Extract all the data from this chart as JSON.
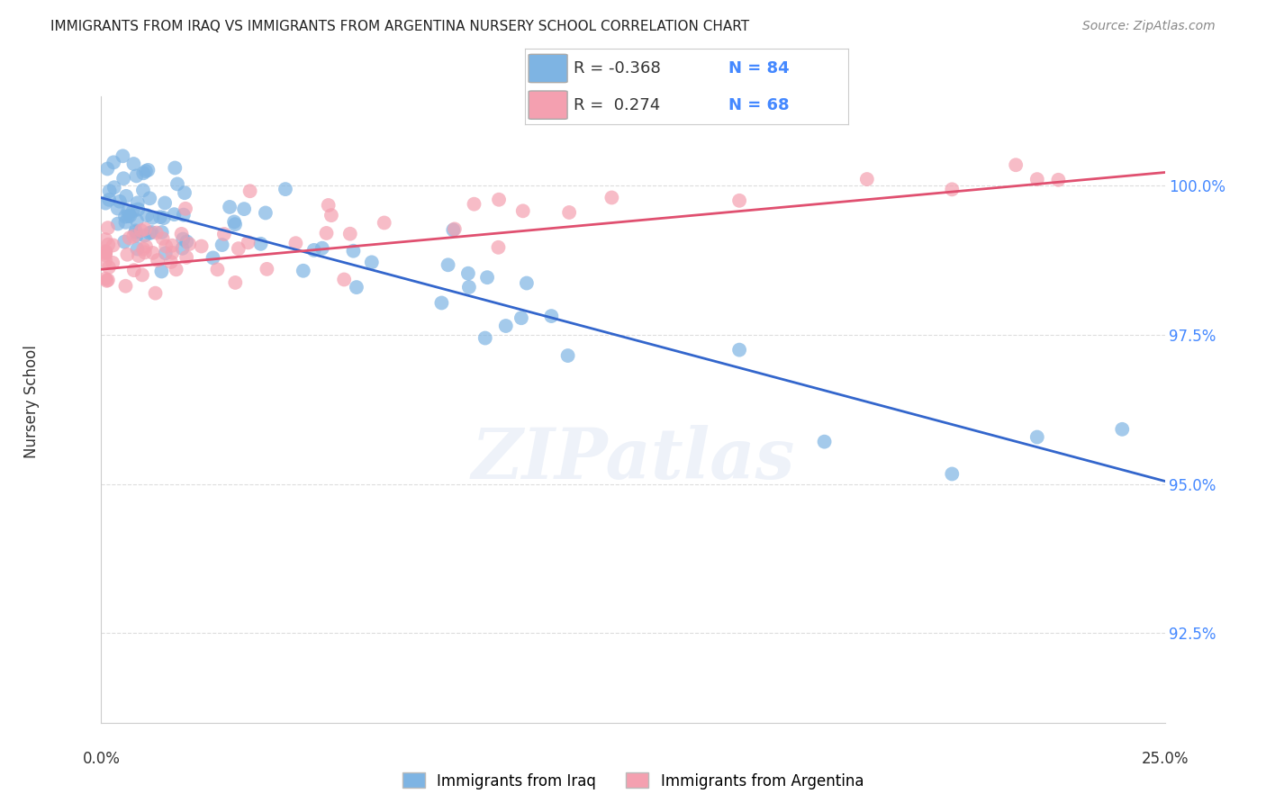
{
  "title": "IMMIGRANTS FROM IRAQ VS IMMIGRANTS FROM ARGENTINA NURSERY SCHOOL CORRELATION CHART",
  "source": "Source: ZipAtlas.com",
  "ylabel": "Nursery School",
  "ytick_labels": [
    "92.5%",
    "95.0%",
    "97.5%",
    "100.0%"
  ],
  "ytick_values": [
    92.5,
    95.0,
    97.5,
    100.0
  ],
  "xlim": [
    0.0,
    25.0
  ],
  "ylim": [
    91.0,
    101.5
  ],
  "iraq_color": "#7EB4E3",
  "argentina_color": "#F4A0B0",
  "iraq_line_color": "#3366CC",
  "argentina_line_color": "#E05070",
  "iraq_R": "-0.368",
  "iraq_N": "84",
  "argentina_R": "0.274",
  "argentina_N": "68",
  "watermark": "ZIPatlas",
  "background_color": "#FFFFFF",
  "grid_color": "#DDDDDD",
  "ytick_color": "#4488FF",
  "xtick_label_left": "0.0%",
  "xtick_label_right": "25.0%",
  "legend_label_iraq": "Immigrants from Iraq",
  "legend_label_argentina": "Immigrants from Argentina"
}
